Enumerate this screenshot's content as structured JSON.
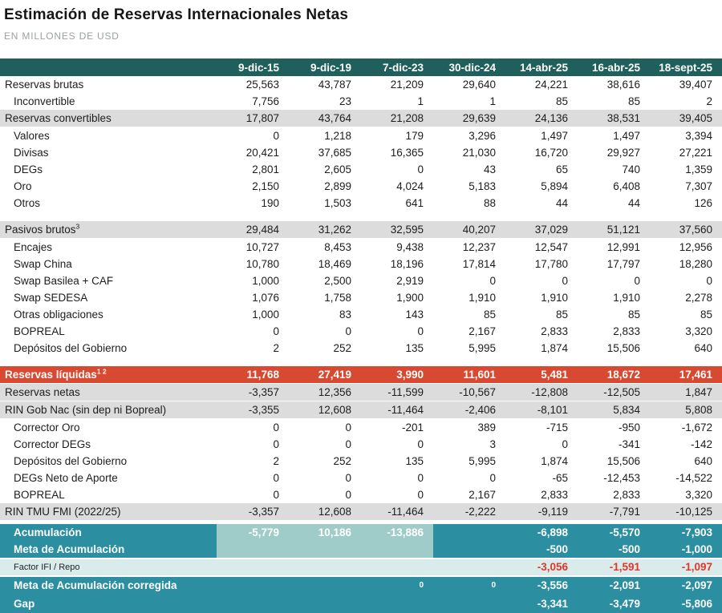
{
  "title": "Estimación de Reservas Internacionales Netas",
  "subtitle": "EN MILLONES DE USD",
  "colors": {
    "header_teal": "#20605c",
    "section_gray": "#dcdcdc",
    "highlight_red": "#d74a31",
    "bottom_teal": "#2b8fa1",
    "light_teal": "#9fccc9",
    "pale_teal": "#d9eceb",
    "negative_red_text": "#e2362a"
  },
  "chart_data": {
    "type": "table",
    "title": "Estimación de Reservas Internacionales Netas",
    "subtitle": "EN MILLONES DE USD",
    "columns": [
      "9-dic-15",
      "9-dic-19",
      "7-dic-23",
      "30-dic-24",
      "14-abr-25",
      "16-abr-25",
      "18-sept-25"
    ],
    "sections": [
      {
        "gap_before": 0,
        "rows": [
          {
            "label": "Reservas brutas",
            "style": "plain",
            "indent": false,
            "values": [
              25563,
              43787,
              21209,
              29640,
              24221,
              38616,
              39407
            ]
          },
          {
            "label": "Inconvertible",
            "style": "plain",
            "indent": true,
            "values": [
              7756,
              23,
              1,
              1,
              85,
              85,
              2
            ]
          },
          {
            "label": "Reservas convertibles",
            "style": "gray",
            "indent": false,
            "values": [
              17807,
              43764,
              21208,
              29639,
              24136,
              38531,
              39405
            ]
          },
          {
            "label": "Valores",
            "style": "plain",
            "indent": true,
            "values": [
              0,
              1218,
              179,
              3296,
              1497,
              1497,
              3394
            ]
          },
          {
            "label": "Divisas",
            "style": "plain",
            "indent": true,
            "values": [
              20421,
              37685,
              16365,
              21030,
              16720,
              29927,
              27221
            ]
          },
          {
            "label": "DEGs",
            "style": "plain",
            "indent": true,
            "values": [
              2801,
              2605,
              0,
              43,
              65,
              740,
              1359
            ]
          },
          {
            "label": "Oro",
            "style": "plain",
            "indent": true,
            "values": [
              2150,
              2899,
              4024,
              5183,
              5894,
              6408,
              7307
            ]
          },
          {
            "label": "Otros",
            "style": "plain",
            "indent": true,
            "values": [
              190,
              1503,
              641,
              88,
              44,
              44,
              126
            ]
          }
        ]
      },
      {
        "gap_before": 12,
        "rows": [
          {
            "label": "Pasivos brutos",
            "sup": "3",
            "style": "gray",
            "indent": false,
            "values": [
              29484,
              31262,
              32595,
              40207,
              37029,
              51121,
              37560
            ]
          },
          {
            "label": "Encajes",
            "style": "plain",
            "indent": true,
            "values": [
              10727,
              8453,
              9438,
              12237,
              12547,
              12991,
              12956
            ]
          },
          {
            "label": "Swap China",
            "style": "plain",
            "indent": true,
            "values": [
              10780,
              18469,
              18196,
              17814,
              17780,
              17797,
              18280
            ]
          },
          {
            "label": "Swap Basilea + CAF",
            "style": "plain",
            "indent": true,
            "values": [
              1000,
              2500,
              2919,
              0,
              0,
              0,
              0
            ]
          },
          {
            "label": "Swap SEDESA",
            "style": "plain",
            "indent": true,
            "values": [
              1076,
              1758,
              1900,
              1910,
              1910,
              1910,
              2278
            ]
          },
          {
            "label": "Otras obligaciones",
            "style": "plain",
            "indent": true,
            "values": [
              1000,
              83,
              143,
              85,
              85,
              85,
              85
            ]
          },
          {
            "label": "BOPREAL",
            "style": "plain",
            "indent": true,
            "values": [
              0,
              0,
              0,
              2167,
              2833,
              2833,
              3320
            ]
          },
          {
            "label": "Depósitos del Gobierno",
            "style": "plain",
            "indent": true,
            "values": [
              2,
              252,
              135,
              5995,
              1874,
              15506,
              640
            ]
          }
        ]
      },
      {
        "gap_before": 12,
        "rows": [
          {
            "label": "Reservas líquidas",
            "sup": "1 2",
            "style": "red",
            "indent": false,
            "values": [
              11768,
              27419,
              3990,
              11601,
              5481,
              18672,
              17461
            ]
          },
          {
            "label": "Reservas netas",
            "style": "gray",
            "indent": false,
            "values": [
              -3357,
              12356,
              -11599,
              -10567,
              -12808,
              -12505,
              1847
            ]
          },
          {
            "label": "RIN Gob Nac (sin dep ni Bopreal)",
            "style": "gray",
            "indent": false,
            "values": [
              -3355,
              12608,
              -11464,
              -2406,
              -8101,
              5834,
              5808
            ]
          },
          {
            "label": "Corrector Oro",
            "style": "plain",
            "indent": true,
            "values": [
              0,
              0,
              -201,
              389,
              -715,
              -950,
              -1672
            ]
          },
          {
            "label": "Corrector DEGs",
            "style": "plain",
            "indent": true,
            "values": [
              0,
              0,
              0,
              3,
              0,
              -341,
              -142
            ]
          },
          {
            "label": "Depósitos del Gobierno",
            "style": "plain",
            "indent": true,
            "values": [
              2,
              252,
              135,
              5995,
              1874,
              15506,
              640
            ]
          },
          {
            "label": "DEGs Neto de Aporte",
            "style": "plain",
            "indent": true,
            "values": [
              0,
              0,
              0,
              0,
              -65,
              -12453,
              -14522
            ]
          },
          {
            "label": "BOPREAL",
            "style": "plain",
            "indent": true,
            "values": [
              0,
              0,
              0,
              2167,
              2833,
              2833,
              3320
            ]
          },
          {
            "label": "RIN TMU FMI (2022/25)",
            "style": "gray",
            "indent": false,
            "values": [
              -3357,
              12608,
              -11464,
              -2222,
              -9119,
              -7791,
              -10125
            ]
          }
        ]
      },
      {
        "gap_before": 4,
        "rows": [
          {
            "label": "Acumulación",
            "style": "teal",
            "indent": true,
            "light_cols": [
              0,
              1,
              2
            ],
            "values": [
              -5779,
              10186,
              -13886,
              null,
              -6898,
              -5570,
              -7903
            ]
          },
          {
            "label": "Meta de Acumulación",
            "style": "teal",
            "indent": true,
            "light_cols": [
              0,
              1,
              2
            ],
            "values": [
              null,
              null,
              null,
              null,
              -500,
              -500,
              -1000
            ]
          },
          {
            "label": "Factor IFI / Repo",
            "style": "pale",
            "indent": true,
            "values": [
              null,
              null,
              null,
              null,
              -3056,
              -1591,
              -1097
            ]
          },
          {
            "label": "Meta de Acumulación corregida",
            "style": "teal",
            "indent": true,
            "small_cols": [
              2,
              3
            ],
            "values": [
              null,
              null,
              0,
              0,
              -3556,
              -2091,
              -2097
            ]
          },
          {
            "label": "Gap",
            "style": "teal",
            "indent": true,
            "last": true,
            "values": [
              null,
              null,
              null,
              null,
              -3341,
              -3479,
              -5806
            ]
          }
        ]
      }
    ]
  }
}
